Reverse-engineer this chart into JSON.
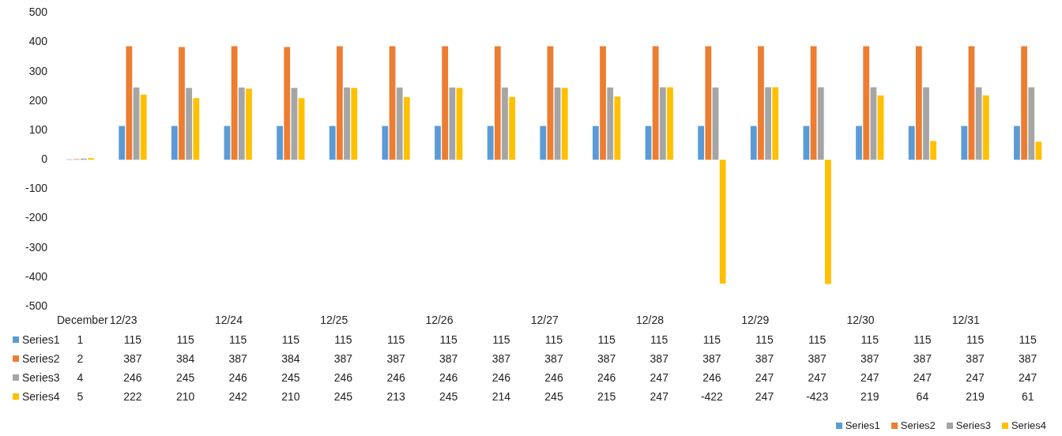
{
  "chart_data": {
    "type": "bar",
    "categories": [
      "December",
      "12/23",
      null,
      "12/24",
      null,
      "12/25",
      null,
      "12/26",
      null,
      "12/27",
      null,
      "12/28",
      null,
      "12/29",
      null,
      "12/30",
      null,
      "12/31",
      null
    ],
    "series": [
      {
        "name": "Series1",
        "color": "#5b9bd5",
        "values": [
          1,
          115,
          115,
          115,
          115,
          115,
          115,
          115,
          115,
          115,
          115,
          115,
          115,
          115,
          115,
          115,
          115,
          115,
          115
        ]
      },
      {
        "name": "Series2",
        "color": "#ed7d31",
        "values": [
          2,
          387,
          384,
          387,
          384,
          387,
          387,
          387,
          387,
          387,
          387,
          387,
          387,
          387,
          387,
          387,
          387,
          387,
          387
        ]
      },
      {
        "name": "Series3",
        "color": "#a5a5a5",
        "values": [
          4,
          246,
          245,
          246,
          245,
          246,
          246,
          246,
          246,
          246,
          246,
          247,
          246,
          247,
          247,
          247,
          247,
          247,
          247
        ]
      },
      {
        "name": "Series4",
        "color": "#ffc000",
        "values": [
          5,
          222,
          210,
          242,
          210,
          245,
          213,
          245,
          214,
          245,
          215,
          247,
          -422,
          247,
          -423,
          219,
          64,
          219,
          61
        ]
      }
    ],
    "ylim": [
      -500,
      500
    ],
    "yticks": [
      -500,
      -400,
      -300,
      -200,
      -100,
      0,
      100,
      200,
      300,
      400,
      500
    ],
    "grid": false,
    "legend": "bottom",
    "data_labels": true
  }
}
